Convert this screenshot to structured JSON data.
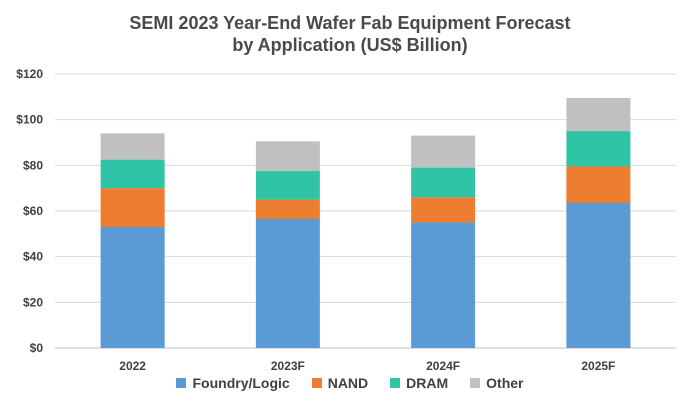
{
  "chart_data": {
    "type": "bar",
    "stacked": true,
    "title": "SEMI 2023 Year-End Wafer Fab Equipment Forecast",
    "subtitle": "by Application (US$ Billion)",
    "categories": [
      "2022",
      "2023F",
      "2024F",
      "2025F"
    ],
    "series": [
      {
        "name": "Foundry/Logic",
        "color": "#5b9bd5",
        "values": [
          53,
          56.5,
          55,
          63.5
        ]
      },
      {
        "name": "NAND",
        "color": "#ed7d31",
        "values": [
          17,
          8.5,
          11,
          16
        ]
      },
      {
        "name": "DRAM",
        "color": "#2ec4a5",
        "values": [
          12.5,
          12.5,
          13,
          15.5
        ]
      },
      {
        "name": "Other",
        "color": "#c0c0c0",
        "values": [
          11.5,
          13,
          14,
          14.5
        ]
      }
    ],
    "ylim": [
      0,
      120
    ],
    "yticks": [
      0,
      20,
      40,
      60,
      80,
      100,
      120
    ],
    "ytick_labels": [
      "$0",
      "$20",
      "$40",
      "$60",
      "$80",
      "$100",
      "$120"
    ],
    "grid": true,
    "legend_position": "bottom"
  }
}
